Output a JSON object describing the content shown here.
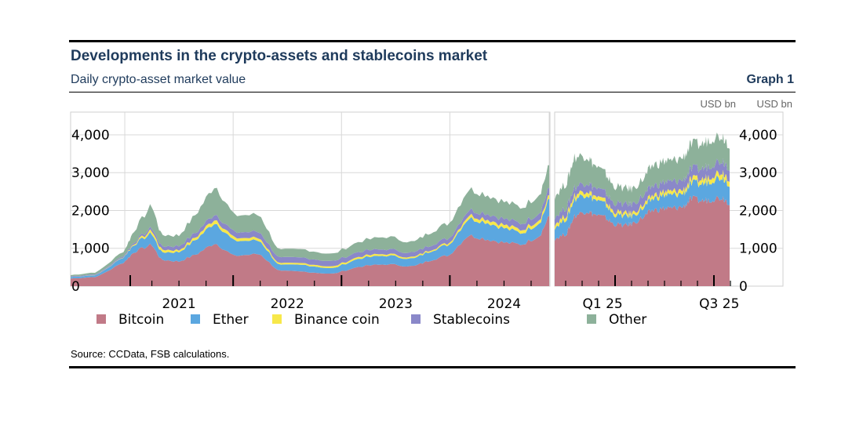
{
  "header": {
    "title": "Developments in the crypto-assets and stablecoins market",
    "subtitle": "Daily crypto-asset market value",
    "graph_label": "Graph 1"
  },
  "footer": {
    "source": "Source: CCData, FSB calculations."
  },
  "chart_data": [
    {
      "type": "area",
      "stacked": true,
      "panel": "left",
      "unit_label": "",
      "y_ticks": [
        "0",
        "1,000",
        "2,000",
        "3,000",
        "4,000"
      ],
      "ylim": [
        0,
        4600
      ],
      "x_range": [
        "2020-07",
        "2024-12"
      ],
      "x_tick_labels": [
        "2021",
        "2022",
        "2023",
        "2024"
      ],
      "grid": true,
      "legend_position": "bottom",
      "x": [
        "2020-07",
        "2020-10",
        "2021-01",
        "2021-02",
        "2021-04",
        "2021-05",
        "2021-07",
        "2021-09",
        "2021-11",
        "2022-01",
        "2022-04",
        "2022-06",
        "2022-09",
        "2022-12",
        "2023-03",
        "2023-06",
        "2023-09",
        "2023-11",
        "2024-01",
        "2024-03",
        "2024-05",
        "2024-07",
        "2024-09",
        "2024-11",
        "2024-12"
      ],
      "series": [
        {
          "name": "Bitcoin",
          "color": "#c17a87",
          "values": [
            200,
            250,
            650,
            900,
            1100,
            700,
            650,
            850,
            1150,
            800,
            850,
            400,
            380,
            320,
            520,
            580,
            520,
            700,
            830,
            1350,
            1250,
            1150,
            1100,
            1350,
            1850
          ]
        },
        {
          "name": "Ether",
          "color": "#5ba7e0",
          "values": [
            40,
            50,
            150,
            200,
            300,
            200,
            250,
            400,
            550,
            400,
            350,
            150,
            180,
            140,
            220,
            230,
            200,
            250,
            280,
            450,
            450,
            380,
            300,
            350,
            450
          ]
        },
        {
          "name": "Binance coin",
          "color": "#f7e84a",
          "values": [
            5,
            5,
            10,
            25,
            80,
            70,
            50,
            70,
            100,
            80,
            70,
            40,
            45,
            45,
            50,
            45,
            35,
            35,
            45,
            85,
            90,
            85,
            85,
            90,
            100
          ]
        },
        {
          "name": "Stablecoins",
          "color": "#8a88c9",
          "values": [
            15,
            20,
            30,
            40,
            70,
            90,
            110,
            120,
            140,
            150,
            160,
            150,
            145,
            140,
            130,
            125,
            120,
            125,
            130,
            140,
            150,
            160,
            170,
            180,
            190
          ]
        },
        {
          "name": "Other",
          "color": "#8db19a",
          "values": [
            30,
            50,
            120,
            300,
            600,
            300,
            280,
            500,
            750,
            450,
            450,
            200,
            220,
            190,
            270,
            330,
            280,
            350,
            400,
            550,
            500,
            450,
            420,
            500,
            600
          ]
        }
      ]
    },
    {
      "type": "area",
      "stacked": true,
      "panel": "right",
      "unit_label": "USD bn",
      "y_ticks": [
        "0",
        "1,000",
        "2,000",
        "3,000",
        "4,000"
      ],
      "ylim": [
        0,
        4600
      ],
      "x_range": [
        "2024-12",
        "2025-09"
      ],
      "x_tick_labels": [
        "Q1 25",
        "Q3 25"
      ],
      "grid": true,
      "x": [
        "2024-12",
        "2024-12-20",
        "2025-01",
        "2025-01-20",
        "2025-02",
        "2025-02-20",
        "2025-03",
        "2025-03-20",
        "2025-04",
        "2025-04-20",
        "2025-05",
        "2025-05-20",
        "2025-06",
        "2025-06-20",
        "2025-07",
        "2025-07-20",
        "2025-08",
        "2025-08-20",
        "2025-09"
      ],
      "series": [
        {
          "name": "Bitcoin",
          "color": "#c17a87",
          "values": [
            1250,
            1400,
            1850,
            2000,
            1900,
            1800,
            1650,
            1600,
            1650,
            1850,
            2000,
            2050,
            2050,
            2100,
            2300,
            2250,
            2300,
            2350,
            2200
          ]
        },
        {
          "name": "Ether",
          "color": "#5ba7e0",
          "values": [
            300,
            400,
            450,
            450,
            400,
            350,
            250,
            250,
            200,
            250,
            300,
            350,
            350,
            350,
            400,
            450,
            500,
            550,
            500
          ]
        },
        {
          "name": "Binance coin",
          "color": "#f7e84a",
          "values": [
            90,
            100,
            100,
            110,
            100,
            90,
            85,
            80,
            80,
            85,
            90,
            95,
            95,
            100,
            110,
            120,
            130,
            140,
            140
          ]
        },
        {
          "name": "Stablecoins",
          "color": "#8a88c9",
          "values": [
            190,
            200,
            205,
            210,
            215,
            220,
            225,
            230,
            235,
            240,
            245,
            250,
            255,
            260,
            270,
            280,
            290,
            300,
            300
          ]
        },
        {
          "name": "Other",
          "color": "#8db19a",
          "values": [
            550,
            650,
            800,
            700,
            600,
            500,
            450,
            420,
            400,
            450,
            550,
            550,
            550,
            600,
            650,
            650,
            700,
            650,
            600
          ]
        }
      ]
    }
  ],
  "legend": [
    {
      "name": "Bitcoin",
      "color": "#c17a87"
    },
    {
      "name": "Ether",
      "color": "#5ba7e0"
    },
    {
      "name": "Binance coin",
      "color": "#f7e84a"
    },
    {
      "name": "Stablecoins",
      "color": "#8a88c9"
    },
    {
      "name": "Other",
      "color": "#8db19a"
    }
  ]
}
